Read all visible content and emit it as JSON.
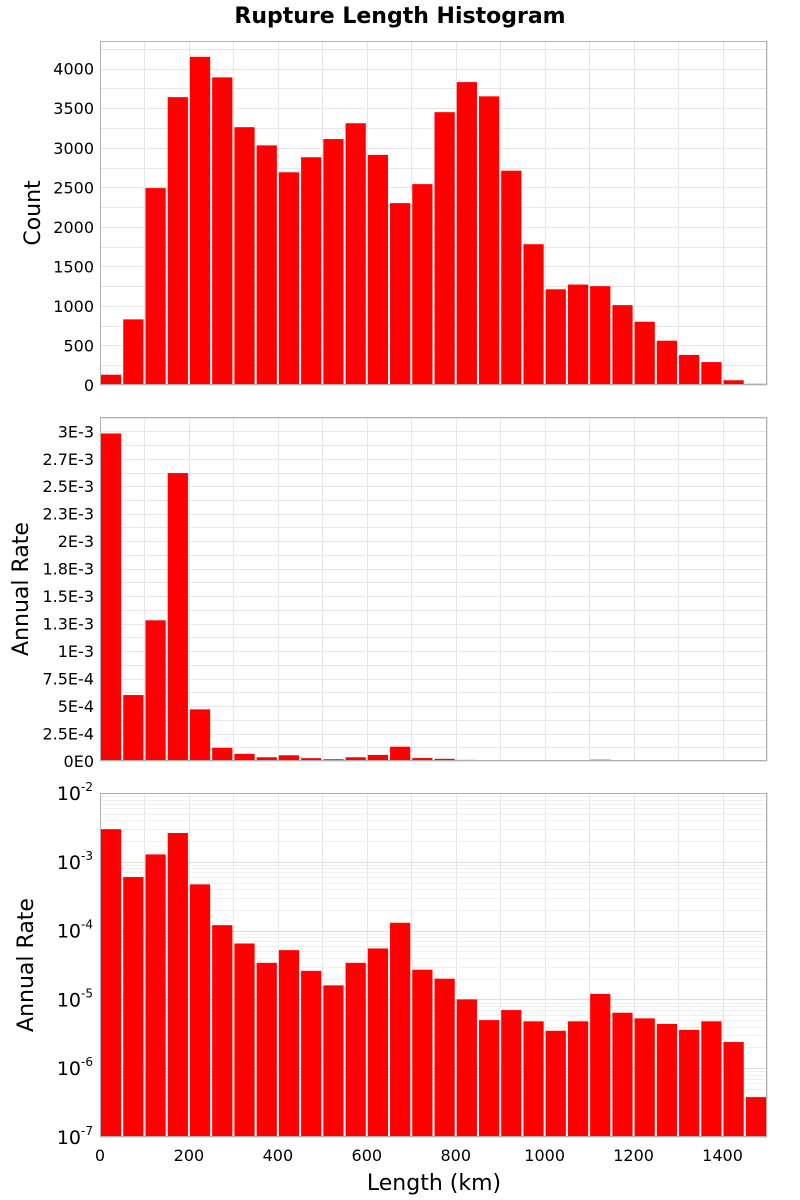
{
  "chart_data": {
    "type": "bar",
    "title": "Rupture Length Histogram",
    "xlabel": "Length (km)",
    "xlim": [
      0,
      1500
    ],
    "x_ticks": [
      "0",
      "200",
      "400",
      "600",
      "800",
      "1000",
      "1200",
      "1400"
    ],
    "bin_width": 50,
    "bin_centers": [
      25,
      75,
      125,
      175,
      225,
      275,
      325,
      375,
      425,
      475,
      525,
      575,
      625,
      675,
      725,
      775,
      825,
      875,
      925,
      975,
      1025,
      1075,
      1125,
      1175,
      1225,
      1275,
      1325,
      1375,
      1425,
      1475
    ],
    "bar_color": "#ff0000",
    "grid": true,
    "panels": [
      {
        "ylabel": "Count",
        "scale": "linear",
        "ylim": [
          0,
          4350
        ],
        "y_tick_values": [
          0,
          500,
          1000,
          1500,
          2000,
          2500,
          3000,
          3500,
          4000
        ],
        "y_tick_labels": [
          "0",
          "500",
          "1000",
          "1500",
          "2000",
          "2500",
          "3000",
          "3500",
          "4000"
        ],
        "values": [
          130,
          830,
          2490,
          3640,
          4150,
          3890,
          3260,
          3030,
          2690,
          2880,
          3110,
          3310,
          2910,
          2300,
          2540,
          3450,
          3830,
          3650,
          2710,
          1780,
          1210,
          1270,
          1250,
          1010,
          800,
          560,
          380,
          290,
          60,
          15
        ]
      },
      {
        "ylabel": "Annual Rate",
        "scale": "linear",
        "ylim": [
          0,
          0.00313
        ],
        "y_tick_values": [
          0,
          0.00025,
          0.0005,
          0.00075,
          0.001,
          0.00125,
          0.0015,
          0.00175,
          0.002,
          0.00225,
          0.0025,
          0.00275,
          0.003
        ],
        "y_tick_labels": [
          "0E0",
          "2.5E-4",
          "5E-4",
          "7.5E-4",
          "1E-3",
          "1.3E-3",
          "1.5E-3",
          "1.8E-3",
          "2E-3",
          "2.3E-3",
          "2.5E-3",
          "2.7E-3",
          "3E-3"
        ],
        "values": [
          0.00298,
          0.0006,
          0.00128,
          0.00262,
          0.00047,
          0.00012,
          6.5e-05,
          3.4e-05,
          5.2e-05,
          2.6e-05,
          1.6e-05,
          3.4e-05,
          5.5e-05,
          0.00013,
          2.7e-05,
          2e-05,
          1e-05,
          5e-06,
          7e-06,
          4.8e-06,
          3.5e-06,
          4.8e-06,
          1.2e-05,
          6.4e-06,
          5.3e-06,
          4.4e-06,
          3.6e-06,
          4.8e-06,
          2.4e-06,
          3.8e-07
        ]
      },
      {
        "ylabel": "Annual Rate",
        "scale": "log",
        "ylim": [
          1e-07,
          0.01
        ],
        "y_tick_values": [
          1e-07,
          1e-06,
          1e-05,
          0.0001,
          0.001,
          0.01
        ],
        "y_tick_base": "10",
        "y_tick_exponents": [
          "-7",
          "-6",
          "-5",
          "-4",
          "-3",
          "-2"
        ],
        "values": [
          0.00298,
          0.0006,
          0.00128,
          0.00262,
          0.00047,
          0.00012,
          6.5e-05,
          3.4e-05,
          5.2e-05,
          2.6e-05,
          1.6e-05,
          3.4e-05,
          5.5e-05,
          0.00013,
          2.7e-05,
          2e-05,
          1e-05,
          5e-06,
          7e-06,
          4.8e-06,
          3.5e-06,
          4.8e-06,
          1.2e-05,
          6.4e-06,
          5.3e-06,
          4.4e-06,
          3.6e-06,
          4.8e-06,
          2.4e-06,
          3.8e-07
        ]
      }
    ]
  }
}
